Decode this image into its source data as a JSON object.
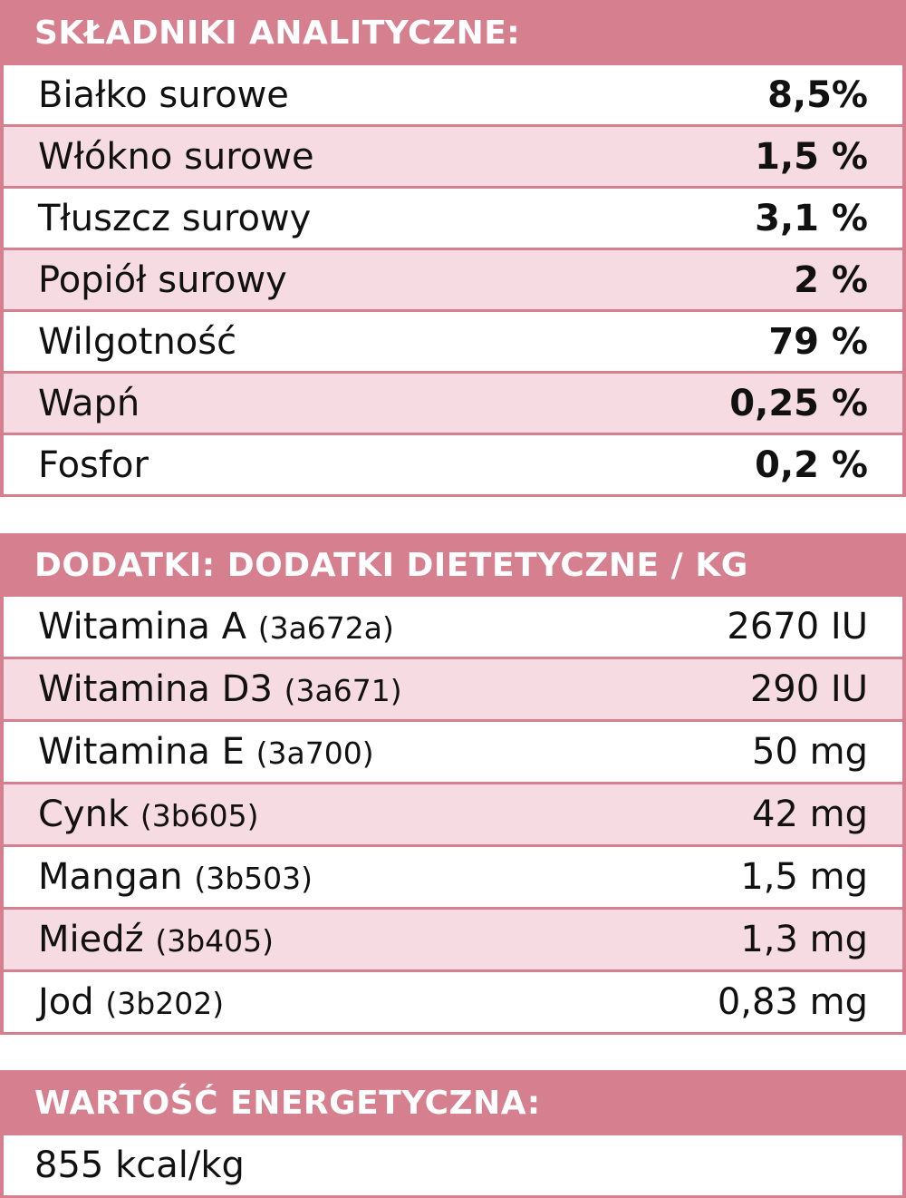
{
  "analytical": {
    "title": "SKŁADNIKI ANALITYCZNE:",
    "rows": [
      {
        "label": "Białko surowe",
        "value": "8,5%"
      },
      {
        "label": "Włókno surowe",
        "value": "1,5 %"
      },
      {
        "label": "Tłuszcz surowy",
        "value": "3,1 %"
      },
      {
        "label": "Popiół surowy",
        "value": "2 %"
      },
      {
        "label": "Wilgotność",
        "value": "79 %"
      },
      {
        "label": "Wapń",
        "value": "0,25 %"
      },
      {
        "label": "Fosfor",
        "value": "0,2 %"
      }
    ]
  },
  "additives": {
    "title": "DODATKI: DODATKI DIETETYCZNE / KG",
    "rows": [
      {
        "label": "Witamina A",
        "code": "(3a672a)",
        "value": "2670 IU"
      },
      {
        "label": "Witamina D3",
        "code": "(3a671)",
        "value": "290 IU"
      },
      {
        "label": "Witamina E",
        "code": "(3a700)",
        "value": "50 mg"
      },
      {
        "label": "Cynk",
        "code": "(3b605)",
        "value": "42 mg"
      },
      {
        "label": "Mangan",
        "code": "(3b503)",
        "value": "1,5 mg"
      },
      {
        "label": "Miedź",
        "code": "(3b405)",
        "value": "1,3 mg"
      },
      {
        "label": "Jod",
        "code": "(3b202)",
        "value": "0,83 mg"
      }
    ]
  },
  "energy": {
    "title": "WARTOŚĆ ENERGETYCZNA:",
    "value": "855 kcal/kg"
  },
  "colors": {
    "header": "#d57f8f",
    "alt_row": "#f6dce2"
  }
}
